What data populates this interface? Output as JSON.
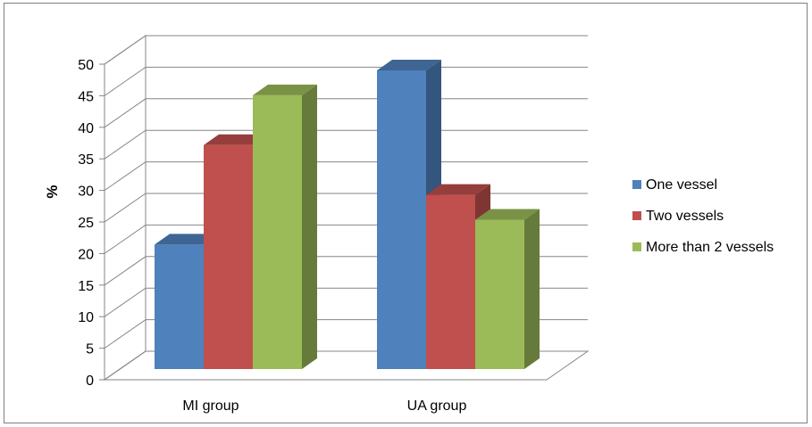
{
  "chart_data": {
    "type": "bar",
    "style": "3d-clustered-column",
    "categories": [
      "MI group",
      "UA group"
    ],
    "series": [
      {
        "name": "One vessel",
        "values": [
          20,
          48
        ],
        "color": "#4f81bd"
      },
      {
        "name": "Two vessels",
        "values": [
          36,
          28
        ],
        "color": "#c0504d"
      },
      {
        "name": "More than 2 vessels",
        "values": [
          44,
          24
        ],
        "color": "#9bbb59"
      }
    ],
    "title": "",
    "xlabel": "",
    "ylabel": "%",
    "ylim": [
      0,
      50
    ],
    "yticks": [
      0,
      5,
      10,
      15,
      20,
      25,
      30,
      35,
      40,
      45,
      50
    ],
    "grid": true,
    "legend_position": "right"
  }
}
